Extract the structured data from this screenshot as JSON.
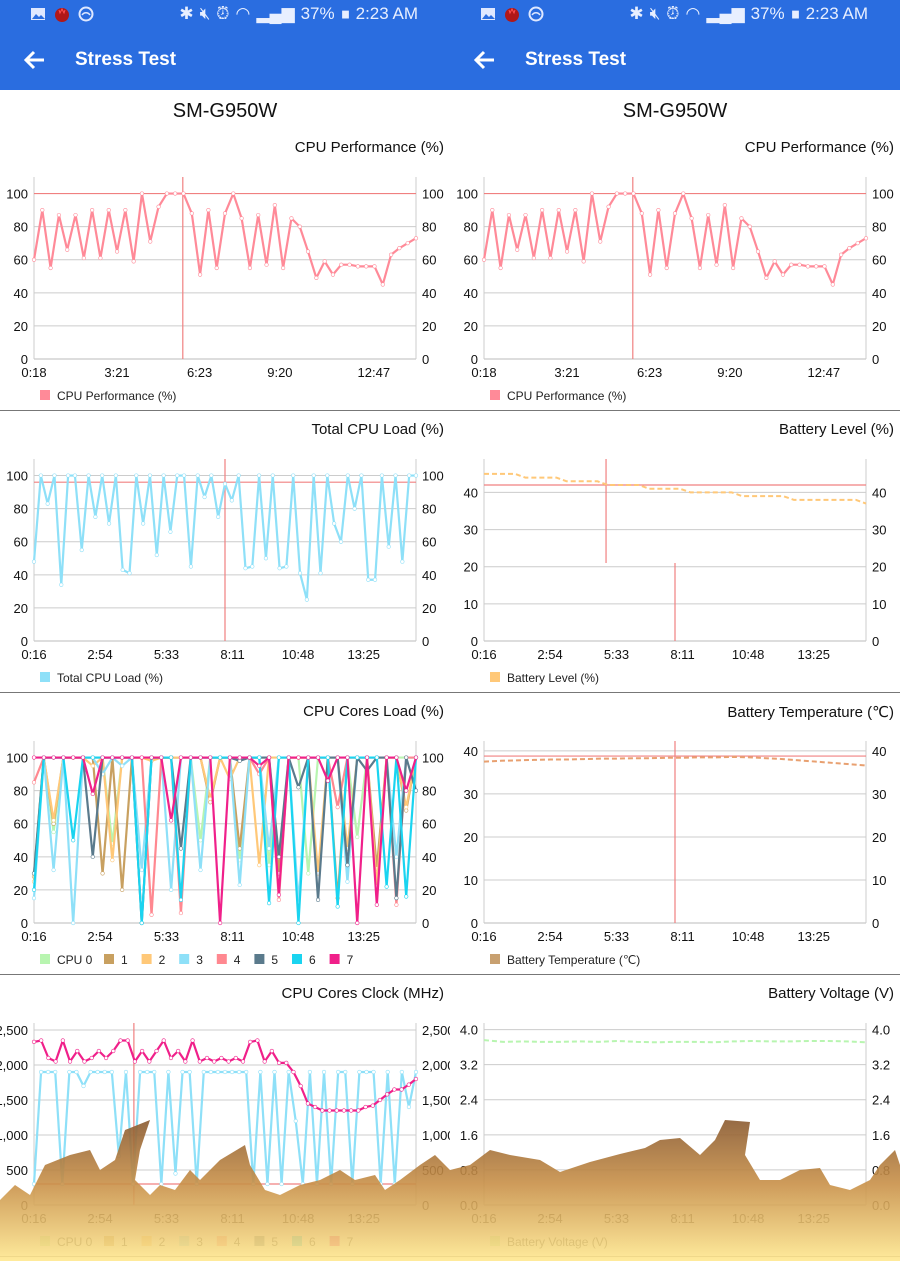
{
  "status": {
    "battery_pct": "37%",
    "time": "2:23 AM",
    "icons_left": [
      "gallery-icon",
      "app-red-icon",
      "sync-icon"
    ],
    "icons_right": [
      "bluetooth-icon",
      "mute-icon",
      "alarm-icon",
      "wifi-icon",
      "signal-icon",
      "battery-icon"
    ]
  },
  "appbar": {
    "title": "Stress Test",
    "back_icon": "arrow-left-icon"
  },
  "device": "SM-G950W",
  "colors": {
    "appbar": "#2a6de0",
    "marker": "#f08080"
  },
  "chart_data": [
    {
      "type": "line",
      "title": "CPU Performance (%)",
      "xlim": [
        "0:18",
        "14:20"
      ],
      "xticks": [
        "0:18",
        "3:21",
        "6:23",
        "9:20",
        "12:47"
      ],
      "ylim": [
        0,
        110
      ],
      "yticks": [
        0,
        20,
        40,
        60,
        80,
        100
      ],
      "ytick_labels": [
        "0",
        "20",
        "40",
        "60",
        "80",
        "100"
      ],
      "hline": 100,
      "vlines": [
        {
          "t": "5:46"
        }
      ],
      "grid": true,
      "legend": "bottom-left",
      "series": [
        {
          "name": "CPU Performance (%)",
          "color": "#ff8a98",
          "values": [
            60,
            90,
            55,
            87,
            66,
            87,
            61,
            90,
            61,
            90,
            65,
            90,
            59,
            100,
            71,
            92,
            100,
            100,
            100,
            88,
            51,
            90,
            55,
            88,
            100,
            85,
            55,
            87,
            57,
            93,
            55,
            85,
            80,
            65,
            49,
            59,
            51,
            57,
            57,
            56,
            56,
            56,
            45,
            63,
            67,
            70,
            73
          ]
        }
      ]
    },
    {
      "type": "line",
      "title": "Total CPU Load (%)",
      "xlim": [
        "0:16",
        "15:30"
      ],
      "xticks": [
        "0:16",
        "2:54",
        "5:33",
        "8:11",
        "10:48",
        "13:25"
      ],
      "ylim": [
        0,
        110
      ],
      "yticks": [
        0,
        20,
        40,
        60,
        80,
        100
      ],
      "ytick_labels": [
        "0",
        "20",
        "40",
        "60",
        "80",
        "100"
      ],
      "hline": 96,
      "vlines": [
        {
          "t": "7:53"
        }
      ],
      "grid": true,
      "legend": "bottom-left",
      "series": [
        {
          "name": "Total CPU Load (%)",
          "color": "#8ee0f8",
          "values": [
            48,
            100,
            83,
            100,
            34,
            100,
            100,
            55,
            100,
            75,
            100,
            71,
            100,
            43,
            41,
            100,
            71,
            100,
            52,
            100,
            66,
            100,
            100,
            45,
            100,
            87,
            100,
            75,
            95,
            85,
            100,
            44,
            45,
            100,
            50,
            100,
            44,
            45,
            100,
            41,
            25,
            100,
            41,
            100,
            71,
            60,
            100,
            80,
            100,
            37,
            37,
            100,
            57,
            100,
            48,
            100,
            100
          ]
        }
      ]
    },
    {
      "type": "line",
      "title": "CPU Cores Load (%)",
      "xlim": [
        "0:16",
        "15:30"
      ],
      "xticks": [
        "0:16",
        "2:54",
        "5:33",
        "8:11",
        "10:48",
        "13:25"
      ],
      "ylim": [
        0,
        110
      ],
      "yticks": [
        0,
        20,
        40,
        60,
        80,
        100
      ],
      "ytick_labels": [
        "0",
        "20",
        "40",
        "60",
        "80",
        "100"
      ],
      "grid": true,
      "legend": "bottom-left",
      "series": [
        {
          "name": "CPU 0",
          "color": "#b8f5b0",
          "values": [
            30,
            100,
            55,
            100,
            100,
            100,
            100,
            100,
            48,
            100,
            100,
            100,
            100,
            100,
            100,
            100,
            100,
            50,
            100,
            100,
            100,
            38,
            100,
            100,
            35,
            100,
            100,
            100,
            30,
            100,
            100,
            100,
            100,
            52,
            100,
            100,
            100,
            100,
            100,
            100
          ]
        },
        {
          "name": "1",
          "color": "#c8a060",
          "values": [
            28,
            100,
            60,
            100,
            100,
            100,
            100,
            30,
            100,
            20,
            100,
            100,
            100,
            100,
            100,
            100,
            100,
            100,
            73,
            100,
            100,
            45,
            100,
            100,
            100,
            30,
            100,
            100,
            100,
            100,
            100,
            15,
            100,
            100,
            100,
            33,
            100,
            100,
            68,
            100
          ]
        },
        {
          "name": "2",
          "color": "#ffc878",
          "values": [
            25,
            100,
            62,
            100,
            100,
            100,
            95,
            100,
            38,
            100,
            100,
            100,
            98,
            100,
            100,
            100,
            100,
            100,
            75,
            100,
            87,
            100,
            100,
            35,
            100,
            100,
            100,
            100,
            100,
            30,
            100,
            100,
            45,
            100,
            100,
            22,
            100,
            100,
            70,
            100
          ]
        },
        {
          "name": "3",
          "color": "#8ee0f8",
          "values": [
            15,
            100,
            32,
            100,
            0,
            100,
            100,
            90,
            100,
            95,
            100,
            32,
            100,
            100,
            20,
            100,
            100,
            32,
            100,
            100,
            100,
            23,
            100,
            100,
            45,
            100,
            100,
            12,
            100,
            100,
            100,
            100,
            25,
            100,
            100,
            100,
            100,
            40,
            100,
            100
          ]
        },
        {
          "name": "4",
          "color": "#ff8890",
          "values": [
            85,
            100,
            100,
            100,
            100,
            100,
            100,
            100,
            100,
            100,
            100,
            100,
            5,
            100,
            100,
            6,
            100,
            100,
            100,
            100,
            100,
            100,
            100,
            90,
            100,
            14,
            100,
            100,
            100,
            100,
            100,
            70,
            100,
            100,
            100,
            100,
            100,
            11,
            100,
            100
          ]
        },
        {
          "name": "5",
          "color": "#5a7a8c",
          "values": [
            30,
            100,
            100,
            100,
            100,
            100,
            40,
            100,
            100,
            100,
            100,
            0,
            100,
            100,
            100,
            45,
            100,
            100,
            100,
            100,
            100,
            98,
            100,
            100,
            100,
            40,
            100,
            82,
            100,
            14,
            100,
            100,
            35,
            100,
            92,
            100,
            100,
            15,
            100,
            80
          ]
        },
        {
          "name": "6",
          "color": "#1ad4f0",
          "values": [
            20,
            100,
            100,
            100,
            50,
            100,
            100,
            100,
            100,
            100,
            100,
            0,
            100,
            100,
            100,
            14,
            100,
            100,
            100,
            100,
            100,
            100,
            100,
            100,
            12,
            100,
            100,
            0,
            100,
            100,
            100,
            10,
            100,
            100,
            100,
            100,
            22,
            100,
            16,
            100
          ]
        },
        {
          "name": "7",
          "color": "#f0208a",
          "values": [
            100,
            100,
            100,
            100,
            100,
            100,
            78,
            100,
            100,
            100,
            100,
            100,
            100,
            100,
            62,
            100,
            100,
            100,
            100,
            0,
            100,
            100,
            100,
            95,
            100,
            17,
            100,
            100,
            100,
            100,
            86,
            100,
            100,
            0,
            100,
            11,
            100,
            100,
            80,
            100
          ]
        }
      ]
    },
    {
      "type": "line",
      "title": "CPU Cores Clock (MHz)",
      "xlim": [
        "0:16",
        "15:30"
      ],
      "xticks": [
        "0:16",
        "2:54",
        "5:33",
        "8:11",
        "10:48",
        "13:25"
      ],
      "ylim": [
        0,
        2600
      ],
      "yticks": [
        0,
        500,
        1000,
        1500,
        2000,
        2500
      ],
      "ytick_labels": [
        "0",
        "500",
        "1,000",
        "1,500",
        "2,000",
        "2,500"
      ],
      "hline": 300,
      "vlines": [
        {
          "t": "4:15"
        }
      ],
      "grid": true,
      "legend": "bottom-left",
      "legend_series": [
        {
          "name": "CPU 0",
          "color": "#b8f5b0"
        },
        {
          "name": "1",
          "color": "#c8a060"
        },
        {
          "name": "2",
          "color": "#ffc878"
        },
        {
          "name": "3",
          "color": "#8ee0f8"
        },
        {
          "name": "4",
          "color": "#ff8890"
        },
        {
          "name": "5",
          "color": "#5a7a8c"
        },
        {
          "name": "6",
          "color": "#1ad4f0"
        },
        {
          "name": "7",
          "color": "#f0208a"
        }
      ],
      "series": [
        {
          "name": "3",
          "color": "#8ee0f8",
          "values": [
            300,
            1900,
            1900,
            1900,
            300,
            1900,
            1900,
            1700,
            1900,
            1900,
            1900,
            1900,
            700,
            1900,
            300,
            1900,
            1900,
            1900,
            300,
            1900,
            450,
            1900,
            1900,
            300,
            1900,
            1900,
            1900,
            1900,
            1900,
            1900,
            1900,
            300,
            1900,
            300,
            1900,
            300,
            1900,
            1200,
            300,
            1900,
            300,
            1900,
            300,
            1900,
            1900,
            300,
            1900,
            1900,
            1900,
            300,
            1900,
            300,
            1900,
            1400,
            1900
          ]
        },
        {
          "name": "7",
          "color": "#f0208a",
          "values": [
            2330,
            2350,
            2100,
            2050,
            2350,
            2050,
            2200,
            2050,
            2100,
            2200,
            2100,
            2200,
            2350,
            2350,
            2050,
            2200,
            2050,
            2200,
            2350,
            2100,
            2200,
            2050,
            2350,
            2050,
            2100,
            2050,
            2100,
            2050,
            2100,
            2050,
            2330,
            2350,
            2050,
            2200,
            2030,
            2030,
            1900,
            1700,
            1450,
            1400,
            1350,
            1350,
            1350,
            1350,
            1350,
            1350,
            1400,
            1420,
            1500,
            1580,
            1650,
            1650,
            1720,
            1800
          ]
        }
      ]
    },
    {
      "type": "line",
      "title": "CPU Performance (%)",
      "xlim": [
        "0:18",
        "14:20"
      ],
      "xticks": [
        "0:18",
        "3:21",
        "6:23",
        "9:20",
        "12:47"
      ],
      "ylim": [
        0,
        110
      ],
      "yticks": [
        0,
        20,
        40,
        60,
        80,
        100
      ],
      "ytick_labels": [
        "0",
        "20",
        "40",
        "60",
        "80",
        "100"
      ],
      "hline": 100,
      "vlines": [
        {
          "t": "5:46"
        }
      ],
      "grid": true,
      "legend": "bottom-left",
      "series": [
        {
          "name": "CPU Performance (%)",
          "color": "#ff8a98",
          "values": [
            60,
            90,
            55,
            87,
            66,
            87,
            61,
            90,
            61,
            90,
            65,
            90,
            59,
            100,
            71,
            92,
            100,
            100,
            100,
            88,
            51,
            90,
            55,
            88,
            100,
            85,
            55,
            87,
            57,
            93,
            55,
            85,
            80,
            65,
            49,
            59,
            51,
            57,
            57,
            56,
            56,
            56,
            45,
            63,
            67,
            70,
            73
          ]
        }
      ]
    },
    {
      "type": "line",
      "title": "Battery Level (%)",
      "xlim": [
        "0:16",
        "15:30"
      ],
      "xticks": [
        "0:16",
        "2:54",
        "5:33",
        "8:11",
        "10:48",
        "13:25"
      ],
      "ylim": [
        0,
        49
      ],
      "yticks": [
        0,
        10,
        20,
        30,
        40
      ],
      "ytick_labels": [
        "0",
        "10",
        "20",
        "30",
        "40"
      ],
      "hline": 42,
      "vlines": [
        {
          "t": "5:08",
          "from": 49,
          "to": 21
        },
        {
          "t": "7:53",
          "from": 21,
          "to": 0
        }
      ],
      "grid": true,
      "legend": "bottom-left",
      "series": [
        {
          "name": "Battery Level (%)",
          "color": "#ffc878",
          "style": "dashed",
          "values": [
            45,
            45,
            45,
            45,
            44,
            44,
            44,
            44,
            43,
            43,
            43,
            43,
            42,
            42,
            42,
            42,
            41,
            41,
            41,
            41,
            40,
            40,
            40,
            40,
            40,
            39,
            39,
            39,
            39,
            39,
            38,
            38,
            38,
            38,
            38,
            38,
            38,
            37
          ]
        }
      ]
    },
    {
      "type": "line",
      "title": "Battery Temperature (℃)",
      "xlim": [
        "0:16",
        "15:30"
      ],
      "xticks": [
        "0:16",
        "2:54",
        "5:33",
        "8:11",
        "10:48",
        "13:25"
      ],
      "ylim": [
        0,
        42.3
      ],
      "yticks": [
        0,
        10,
        20,
        30,
        40
      ],
      "ytick_labels": [
        "0",
        "10",
        "20",
        "30",
        "40"
      ],
      "hline": 38.8,
      "vlines": [
        {
          "t": "7:53"
        }
      ],
      "grid": true,
      "legend": "bottom-left",
      "series": [
        {
          "name": "Battery Temperature (℃)",
          "color": "#c8a070",
          "line_color": "#e8a070",
          "style": "dashed",
          "values": [
            37.5,
            37.7,
            37.8,
            37.9,
            38,
            38,
            38.1,
            38.2,
            38.2,
            38.3,
            38.3,
            38.4,
            38.4,
            38.5,
            38.5,
            38.6,
            38.5,
            38.3,
            38.1,
            37.8,
            37.5,
            37.2,
            36.9,
            36.6
          ]
        }
      ]
    },
    {
      "type": "line",
      "title": "Battery Voltage (V)",
      "xlim": [
        "0:16",
        "15:30"
      ],
      "xticks": [
        "0:16",
        "2:54",
        "5:33",
        "8:11",
        "10:48",
        "13:25"
      ],
      "ylim": [
        0,
        4.15
      ],
      "yticks": [
        0,
        0.8,
        1.6,
        2.4,
        3.2,
        4.0
      ],
      "ytick_labels": [
        "0.0",
        "0.8",
        "1.6",
        "2.4",
        "3.2",
        "4.0"
      ],
      "grid": true,
      "legend": "bottom-left",
      "series": [
        {
          "name": "Battery Voltage (V)",
          "color": "#b8f5b0",
          "style": "dashed",
          "values": [
            3.76,
            3.72,
            3.73,
            3.72,
            3.72,
            3.73,
            3.72,
            3.74,
            3.72,
            3.71,
            3.72,
            3.72,
            3.71,
            3.73,
            3.74,
            3.73,
            3.73,
            3.74,
            3.74,
            3.73,
            3.71
          ]
        }
      ]
    }
  ]
}
